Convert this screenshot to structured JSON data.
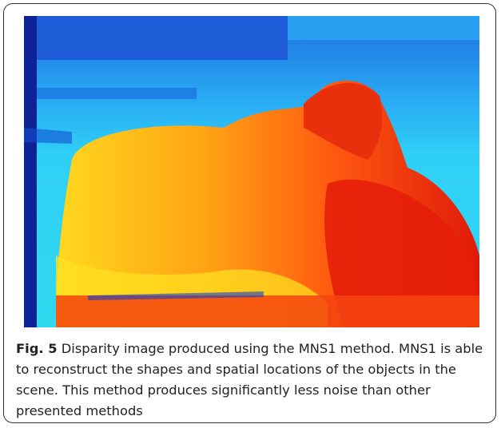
{
  "figure": {
    "label": "Fig. 5",
    "caption": "Disparity image produced using the MNS1 method. MNS1 is able to reconstruct the shapes and spatial locations of the objects in the scene. This method produces significantly less noise than other presented methods"
  }
}
